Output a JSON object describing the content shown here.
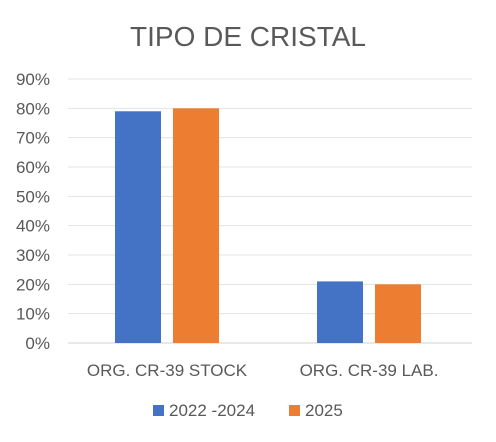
{
  "chart_data": {
    "type": "bar",
    "title": "TIPO DE CRISTAL",
    "categories": [
      "ORG. CR-39 STOCK",
      "ORG. CR-39 LAB."
    ],
    "series": [
      {
        "name": "2022 -2024",
        "values": [
          0.79,
          0.21
        ],
        "color": "#4472C4"
      },
      {
        "name": "2025",
        "values": [
          0.8,
          0.2
        ],
        "color": "#ED7D31"
      }
    ],
    "ylim": [
      0,
      0.9
    ],
    "yticks": [
      0,
      0.1,
      0.2,
      0.3,
      0.4,
      0.5,
      0.6,
      0.7,
      0.8,
      0.9
    ],
    "ytick_labels": [
      "0%",
      "10%",
      "20%",
      "30%",
      "40%",
      "50%",
      "60%",
      "70%",
      "80%",
      "90%"
    ],
    "grid": true,
    "legend": "bottom"
  }
}
